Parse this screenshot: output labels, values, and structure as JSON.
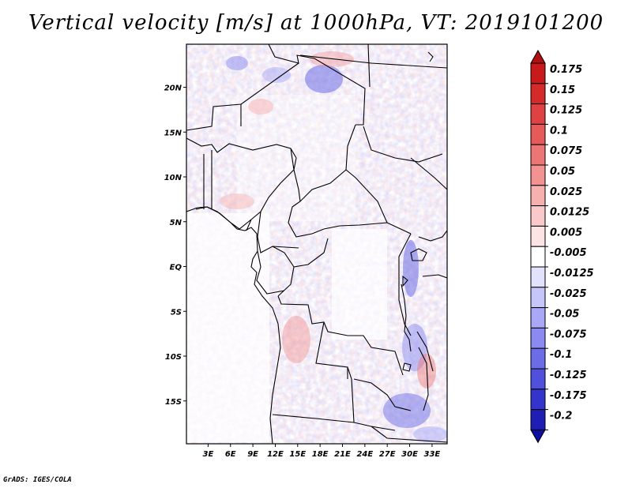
{
  "title": "Vertical velocity [m/s] at 1000hPa, VT: 2019101200",
  "credit": "GrADS: IGES/COLA",
  "map": {
    "lat_ticks": [
      {
        "label": "20N",
        "lat": 20
      },
      {
        "label": "15N",
        "lat": 15
      },
      {
        "label": "10N",
        "lat": 10
      },
      {
        "label": "5N",
        "lat": 5
      },
      {
        "label": "EQ",
        "lat": 0
      },
      {
        "label": "5S",
        "lat": -5
      },
      {
        "label": "10S",
        "lat": -10
      },
      {
        "label": "15S",
        "lat": -15
      }
    ],
    "lon_ticks": [
      {
        "label": "3E",
        "lon": 3
      },
      {
        "label": "6E",
        "lon": 6
      },
      {
        "label": "9E",
        "lon": 9
      },
      {
        "label": "12E",
        "lon": 12
      },
      {
        "label": "15E",
        "lon": 15
      },
      {
        "label": "18E",
        "lon": 18
      },
      {
        "label": "21E",
        "lon": 21
      },
      {
        "label": "24E",
        "lon": 24
      },
      {
        "label": "27E",
        "lon": 27
      },
      {
        "label": "30E",
        "lon": 30
      },
      {
        "label": "33E",
        "lon": 33
      }
    ]
  },
  "colorbar": {
    "levels": [
      {
        "label": "0.175",
        "color": "#c81a1a"
      },
      {
        "label": "0.15",
        "color": "#d42a2a"
      },
      {
        "label": "0.125",
        "color": "#de4242"
      },
      {
        "label": "0.1",
        "color": "#e65a5a"
      },
      {
        "label": "0.075",
        "color": "#ec7676"
      },
      {
        "label": "0.05",
        "color": "#f29292"
      },
      {
        "label": "0.025",
        "color": "#f6b0b0"
      },
      {
        "label": "0.0125",
        "color": "#facaca"
      },
      {
        "label": "0.005",
        "color": "#fde4e4"
      },
      {
        "label": "-0.005",
        "color": "#ffffff"
      },
      {
        "label": "-0.0125",
        "color": "#e2e2fd"
      },
      {
        "label": "-0.025",
        "color": "#c6c6fb"
      },
      {
        "label": "-0.05",
        "color": "#a8a8f6"
      },
      {
        "label": "-0.075",
        "color": "#8a8af0"
      },
      {
        "label": "-0.1",
        "color": "#6c6ce6"
      },
      {
        "label": "-0.125",
        "color": "#5050dc"
      },
      {
        "label": "-0.175",
        "color": "#3434cc"
      },
      {
        "label": "-0.2",
        "color": "#1e1eb4"
      }
    ],
    "top_color": "#b01010",
    "bottom_color": "#1010a0"
  }
}
